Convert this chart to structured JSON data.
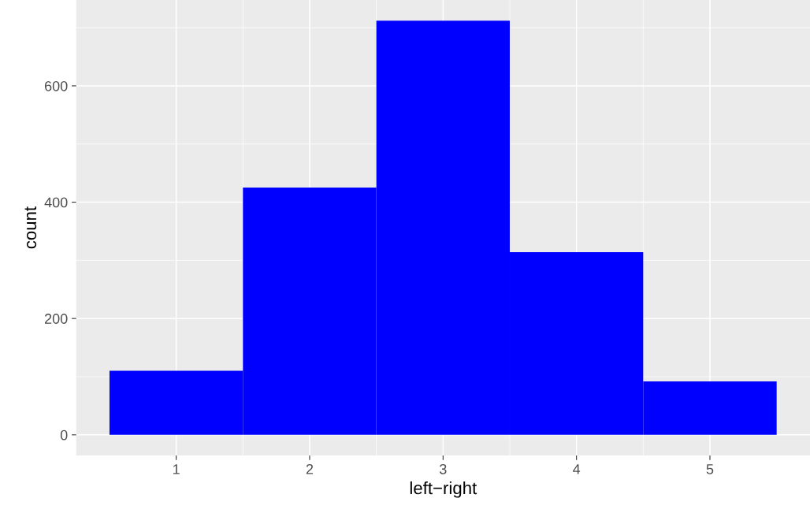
{
  "chart_data": {
    "type": "histogram",
    "xlabel": "left−right",
    "ylabel": "count",
    "bins": [
      0.5,
      1.5,
      2.5,
      3.5,
      4.5,
      5.5
    ],
    "values": [
      110,
      425,
      712,
      314,
      92
    ],
    "color": "#0000ff",
    "xlim": [
      0.25,
      5.75
    ],
    "xticks": [
      1,
      2,
      3,
      4,
      5
    ],
    "ylim": [
      -35.6,
      747.6
    ],
    "yticks": [
      0,
      200,
      400,
      600
    ],
    "grid": true
  }
}
